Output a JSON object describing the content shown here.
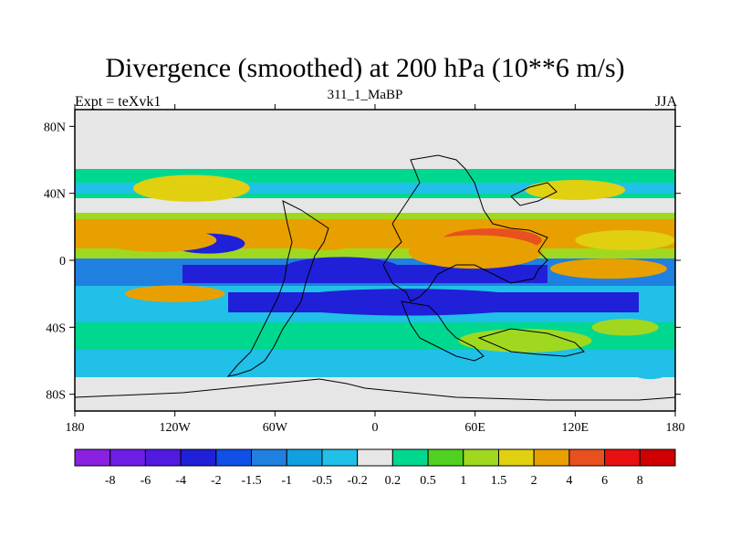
{
  "chart_data": {
    "type": "heatmap",
    "title": "Divergence (smoothed) at 200 hPa (10**6 m/s)",
    "left_string": "Expt = teXvk1",
    "center_string": "311_1_MaBP",
    "right_string": "JJA",
    "x_axis": {
      "range": [
        -180,
        180
      ],
      "ticks": [
        -180,
        -120,
        -60,
        0,
        60,
        120,
        180
      ],
      "tick_labels": [
        "180",
        "120W",
        "60W",
        "0",
        "60E",
        "120E",
        "180"
      ]
    },
    "y_axis": {
      "range": [
        -90,
        90
      ],
      "ticks": [
        80,
        40,
        0,
        -40,
        -80
      ],
      "tick_labels": [
        "80N",
        "40N",
        "0",
        "40S",
        "80S"
      ]
    },
    "colorbar": {
      "levels": [
        "-8",
        "-6",
        "-4",
        "-2",
        "-1.5",
        "-1",
        "-0.5",
        "-0.2",
        "0.2",
        "0.5",
        "1",
        "1.5",
        "2",
        "4",
        "6",
        "8"
      ],
      "colors": [
        "#8a20e0",
        "#6e1ee6",
        "#5219e0",
        "#2020d8",
        "#1050e6",
        "#2080e0",
        "#10a0e0",
        "#20c0e8",
        "#e6e6e6",
        "#00d890",
        "#50d020",
        "#a0d820",
        "#e0d010",
        "#e8a000",
        "#e85020",
        "#e81010",
        "#d00000"
      ]
    },
    "fields": [
      {
        "level_index": 3,
        "lon": -100,
        "lat": 10,
        "rx": 22,
        "ry": 6
      },
      {
        "level_index": 13,
        "lon": -130,
        "lat": 12,
        "rx": 35,
        "ry": 7
      },
      {
        "level_index": 13,
        "lon": -30,
        "lat": 14,
        "rx": 25,
        "ry": 8
      },
      {
        "level_index": 14,
        "lon": 70,
        "lat": 12,
        "rx": 30,
        "ry": 7
      },
      {
        "level_index": 13,
        "lon": 60,
        "lat": 5,
        "rx": 40,
        "ry": 10
      },
      {
        "level_index": 12,
        "lon": 150,
        "lat": 12,
        "rx": 30,
        "ry": 6
      },
      {
        "level_index": 3,
        "lon": -20,
        "lat": -5,
        "rx": 35,
        "ry": 7
      },
      {
        "level_index": 3,
        "lon": 20,
        "lat": -25,
        "rx": 80,
        "ry": 8
      },
      {
        "level_index": 13,
        "lon": -120,
        "lat": -20,
        "rx": 30,
        "ry": 5
      },
      {
        "level_index": 13,
        "lon": 140,
        "lat": -5,
        "rx": 35,
        "ry": 6
      },
      {
        "level_index": 12,
        "lon": -110,
        "lat": 43,
        "rx": 35,
        "ry": 8
      },
      {
        "level_index": 12,
        "lon": 120,
        "lat": 42,
        "rx": 30,
        "ry": 6
      },
      {
        "level_index": 11,
        "lon": 90,
        "lat": -48,
        "rx": 40,
        "ry": 7
      },
      {
        "level_index": 11,
        "lon": 150,
        "lat": -40,
        "rx": 20,
        "ry": 5
      },
      {
        "level_index": 7,
        "lon": 165,
        "lat": -63,
        "rx": 15,
        "ry": 8
      }
    ]
  }
}
